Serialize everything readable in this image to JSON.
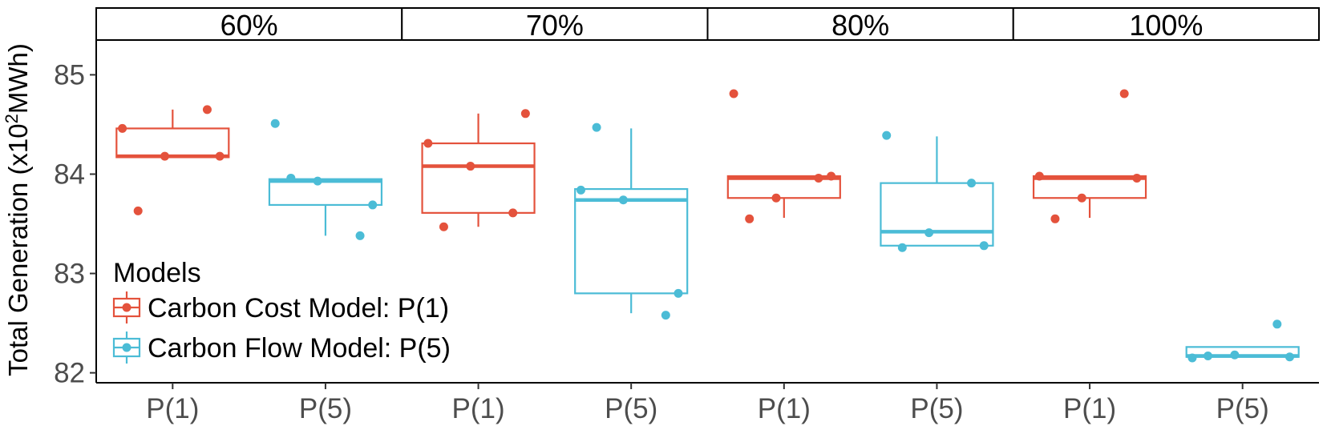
{
  "chart_data": {
    "type": "box",
    "ylabel_main": "Total Generation (x10",
    "ylabel_sup": "2",
    "ylabel_tail": "MWh)",
    "ylim": [
      81.9,
      85.35
    ],
    "yticks": [
      82,
      83,
      84,
      85
    ],
    "colors": {
      "P(1)": "#e4523c",
      "P(5)": "#4bbcd6"
    },
    "legend": {
      "title": "Models",
      "entries": [
        {
          "key": "P(1)",
          "label": "Carbon Cost Model: P(1)"
        },
        {
          "key": "P(5)",
          "label": "Carbon Flow Model: P(5)"
        }
      ]
    },
    "panels": [
      {
        "label": "60%",
        "groups": [
          {
            "category": "P(1)",
            "q1": 84.17,
            "median": 84.18,
            "q3": 84.46,
            "whisker_low": 84.17,
            "whisker_high": 84.65,
            "points": [
              84.46,
              84.18,
              84.18,
              84.65,
              83.63
            ]
          },
          {
            "category": "P(5)",
            "q1": 83.69,
            "median": 83.93,
            "q3": 83.95,
            "whisker_low": 83.38,
            "whisker_high": 83.95,
            "points": [
              84.51,
              83.93,
              83.69,
              83.38,
              83.96
            ]
          }
        ]
      },
      {
        "label": "70%",
        "groups": [
          {
            "category": "P(1)",
            "q1": 83.61,
            "median": 84.08,
            "q3": 84.31,
            "whisker_low": 83.47,
            "whisker_high": 84.61,
            "points": [
              84.31,
              84.08,
              84.61,
              83.61,
              83.47
            ]
          },
          {
            "category": "P(5)",
            "q1": 82.8,
            "median": 83.74,
            "q3": 83.85,
            "whisker_low": 82.6,
            "whisker_high": 84.46,
            "points": [
              83.84,
              83.74,
              82.8,
              82.58,
              84.47
            ]
          }
        ]
      },
      {
        "label": "80%",
        "groups": [
          {
            "category": "P(1)",
            "q1": 83.76,
            "median": 83.96,
            "q3": 83.98,
            "whisker_low": 83.56,
            "whisker_high": 83.98,
            "points": [
              84.81,
              83.76,
              83.98,
              83.96,
              83.55
            ]
          },
          {
            "category": "P(5)",
            "q1": 83.28,
            "median": 83.42,
            "q3": 83.91,
            "whisker_low": 83.28,
            "whisker_high": 84.38,
            "points": [
              84.39,
              83.41,
              83.28,
              83.91,
              83.26
            ]
          }
        ]
      },
      {
        "label": "100%",
        "groups": [
          {
            "category": "P(1)",
            "q1": 83.76,
            "median": 83.96,
            "q3": 83.98,
            "whisker_low": 83.56,
            "whisker_high": 83.98,
            "points": [
              83.98,
              83.76,
              83.96,
              84.81,
              83.55
            ]
          },
          {
            "category": "P(5)",
            "q1": 82.16,
            "median": 82.17,
            "q3": 82.26,
            "whisker_low": 82.16,
            "whisker_high": 82.26,
            "points": [
              82.15,
              82.18,
              82.16,
              82.49,
              82.17
            ]
          }
        ]
      }
    ]
  }
}
